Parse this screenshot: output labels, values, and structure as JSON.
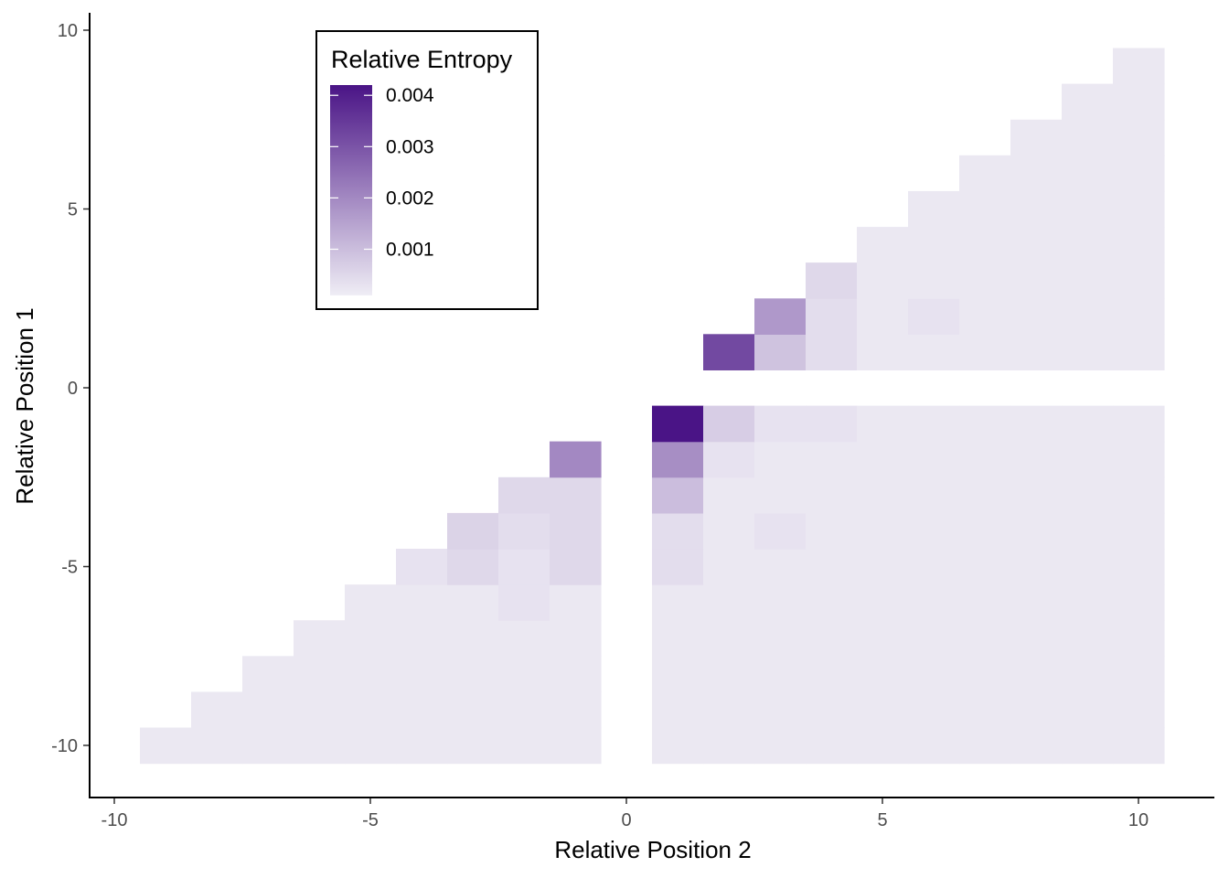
{
  "chart_data": {
    "type": "heatmap",
    "title": "",
    "xlabel": "Relative Position 2",
    "ylabel": "Relative Position 1",
    "xlim": [
      -10.5,
      11.5
    ],
    "ylim": [
      -11.5,
      10.5
    ],
    "x_ticks": [
      -10,
      -5,
      0,
      5,
      10
    ],
    "y_ticks": [
      -10,
      -5,
      0,
      5,
      10
    ],
    "x_tick_labels": [
      "-10",
      "-5",
      "0",
      "5",
      "10"
    ],
    "y_tick_labels": [
      "-10",
      "-5",
      "0",
      "5",
      "10"
    ],
    "grid": false,
    "legend": {
      "title": "Relative Entropy",
      "placement": "top-left",
      "breaks": [
        0.004,
        0.003,
        0.002,
        0.001
      ],
      "labels": [
        "0.004",
        "0.003",
        "0.002",
        "0.001"
      ],
      "range": [
        0.0001,
        0.0042
      ]
    },
    "color_scale": {
      "low": "#efedf5",
      "high": "#4a1486"
    },
    "default_value": 0.0002,
    "cells": [
      {
        "x": 1,
        "y": -1,
        "value": 0.0042
      },
      {
        "x": 2,
        "y": -1,
        "value": 0.0007
      },
      {
        "x": 3,
        "y": -1,
        "value": 0.0003
      },
      {
        "x": 4,
        "y": -1,
        "value": 0.0003
      },
      {
        "x": 1,
        "y": -2,
        "value": 0.0019
      },
      {
        "x": 1,
        "y": -3,
        "value": 0.001
      },
      {
        "x": 1,
        "y": -4,
        "value": 0.0004
      },
      {
        "x": 1,
        "y": -5,
        "value": 0.0004
      },
      {
        "x": 2,
        "y": -2,
        "value": 0.0003
      },
      {
        "x": 3,
        "y": -4,
        "value": 0.0003
      },
      {
        "x": -1,
        "y": -2,
        "value": 0.002
      },
      {
        "x": -1,
        "y": -3,
        "value": 0.0005
      },
      {
        "x": -2,
        "y": -3,
        "value": 0.0005
      },
      {
        "x": -1,
        "y": -4,
        "value": 0.0005
      },
      {
        "x": -2,
        "y": -4,
        "value": 0.0004
      },
      {
        "x": -3,
        "y": -4,
        "value": 0.0006
      },
      {
        "x": -1,
        "y": -5,
        "value": 0.0005
      },
      {
        "x": -2,
        "y": -5,
        "value": 0.0003
      },
      {
        "x": -3,
        "y": -5,
        "value": 0.0005
      },
      {
        "x": -4,
        "y": -5,
        "value": 0.0003
      },
      {
        "x": -2,
        "y": -6,
        "value": 0.0003
      },
      {
        "x": 2,
        "y": 1,
        "value": 0.0032
      },
      {
        "x": 3,
        "y": 1,
        "value": 0.0009
      },
      {
        "x": 4,
        "y": 1,
        "value": 0.0004
      },
      {
        "x": 3,
        "y": 2,
        "value": 0.0017
      },
      {
        "x": 4,
        "y": 2,
        "value": 0.0004
      },
      {
        "x": 4,
        "y": 3,
        "value": 0.0005
      },
      {
        "x": 6,
        "y": 2,
        "value": 0.0003
      }
    ]
  }
}
